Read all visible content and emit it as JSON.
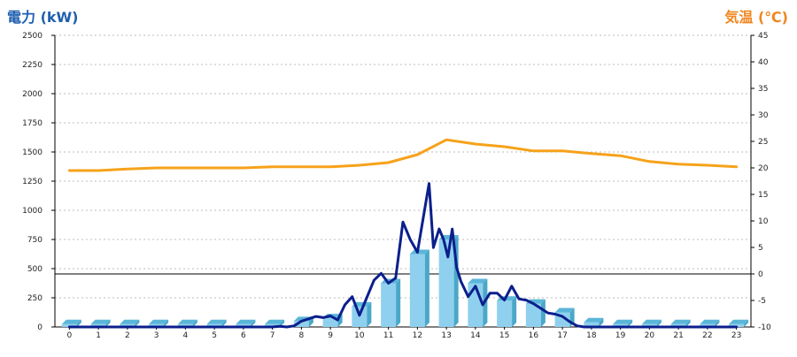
{
  "left_axis_title": "電力 (kW)",
  "right_axis_title": "気温 (℃)",
  "colors": {
    "power_line": "#0b1f8c",
    "temp_line": "#f6a21a",
    "bar_front": "#8fd0ee",
    "bar_side": "#4aa7c9",
    "bar_top": "#5bb6d8",
    "left_title": "#1f5fb0",
    "right_title": "#f0861f"
  },
  "chart_data": {
    "type": "bar",
    "categories": [
      "0",
      "1",
      "2",
      "3",
      "4",
      "5",
      "6",
      "7",
      "8",
      "9",
      "10",
      "11",
      "12",
      "13",
      "14",
      "15",
      "16",
      "17",
      "18",
      "19",
      "20",
      "21",
      "22",
      "23"
    ],
    "series": [
      {
        "type": "bar",
        "axis": "left",
        "values": [
          25,
          25,
          25,
          25,
          25,
          25,
          25,
          25,
          50,
          75,
          175,
          375,
          625,
          750,
          375,
          225,
          200,
          125,
          40,
          25,
          25,
          25,
          25,
          25
        ]
      },
      {
        "type": "line",
        "axis": "left",
        "x": [
          0,
          0.5,
          1,
          1.5,
          2,
          2.5,
          3,
          3.5,
          4,
          4.5,
          5,
          5.5,
          6,
          6.5,
          7,
          7.25,
          7.5,
          7.75,
          8,
          8.25,
          8.5,
          8.75,
          9,
          9.25,
          9.5,
          9.75,
          10,
          10.25,
          10.5,
          10.75,
          11,
          11.25,
          11.5,
          11.75,
          12,
          12.25,
          12.4,
          12.55,
          12.75,
          12.9,
          13.05,
          13.2,
          13.35,
          13.5,
          13.75,
          14,
          14.25,
          14.5,
          14.75,
          15,
          15.25,
          15.5,
          15.75,
          16,
          16.25,
          16.5,
          16.75,
          17,
          17.25,
          17.5,
          17.75,
          18,
          18.5,
          19,
          19.5,
          20,
          20.5,
          21,
          21.5,
          22,
          22.5,
          23
        ],
        "values": [
          0,
          0,
          0,
          0,
          0,
          0,
          0,
          0,
          0,
          0,
          0,
          0,
          0,
          0,
          0,
          5,
          0,
          10,
          50,
          70,
          90,
          80,
          95,
          60,
          190,
          260,
          100,
          250,
          400,
          460,
          375,
          420,
          900,
          750,
          640,
          1010,
          1230,
          680,
          840,
          750,
          600,
          840,
          510,
          390,
          260,
          350,
          190,
          290,
          290,
          230,
          350,
          240,
          230,
          200,
          160,
          120,
          110,
          90,
          45,
          10,
          0,
          0,
          0,
          0,
          0,
          0,
          0,
          0,
          0,
          0,
          0,
          0
        ]
      },
      {
        "type": "line",
        "axis": "right",
        "x": [
          0,
          1,
          2,
          3,
          4,
          5,
          6,
          7,
          8,
          9,
          10,
          11,
          12,
          13,
          14,
          15,
          16,
          17,
          18,
          19,
          20,
          21,
          22,
          23
        ],
        "values": [
          19.5,
          19.5,
          19.8,
          20,
          20,
          20,
          20,
          20.2,
          20.2,
          20.2,
          20.5,
          21,
          22.5,
          25.3,
          24.5,
          24,
          23.2,
          23.2,
          22.7,
          22.3,
          21.2,
          20.7,
          20.5,
          20.2
        ]
      }
    ],
    "xlim": [
      -0.5,
      23.5
    ],
    "ylim": [
      0,
      2500
    ],
    "yticks": [
      0,
      250,
      500,
      750,
      1000,
      1250,
      1500,
      1750,
      2000,
      2250,
      2500
    ],
    "y2lim": [
      -10,
      45
    ],
    "y2ticks": [
      -10,
      -5,
      0,
      5,
      10,
      15,
      20,
      25,
      30,
      35,
      40,
      45
    ],
    "reference_line_y2": 0,
    "grid": "horizontal-dashed",
    "legend": "none"
  }
}
